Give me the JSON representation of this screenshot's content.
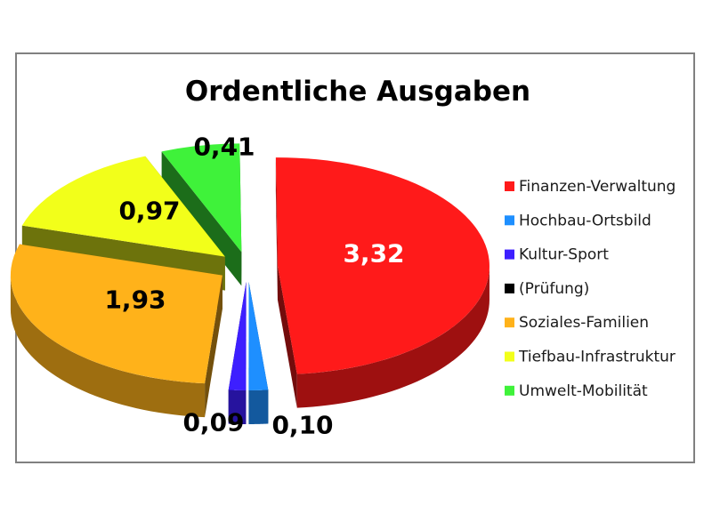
{
  "chart_data": {
    "type": "pie",
    "style": "3d-exploded",
    "title": "Ordentliche Ausgaben",
    "legend_position": "right",
    "slices": [
      {
        "name": "Finanzen-Verwaltung",
        "value": 3.32,
        "label": "3,32",
        "color": "#ff1a1a",
        "label_color": "#ffffff"
      },
      {
        "name": "Hochbau-Ortsbild",
        "value": 0.1,
        "label": "0,10",
        "color": "#1e8fff",
        "label_color": "#000000"
      },
      {
        "name": "Kultur-Sport",
        "value": 0.09,
        "label": "0,09",
        "color": "#3d1fff",
        "label_color": "#000000"
      },
      {
        "name": "(Prüfung)",
        "value": 0.0,
        "label": "",
        "color": "#000000",
        "label_color": "#000000"
      },
      {
        "name": "Soziales-Familien",
        "value": 1.93,
        "label": "1,93",
        "color": "#ffb21a",
        "label_color": "#000000"
      },
      {
        "name": "Tiefbau-Infrastruktur",
        "value": 0.97,
        "label": "0,97",
        "color": "#f2ff1a",
        "label_color": "#000000"
      },
      {
        "name": "Umwelt-Mobilität",
        "value": 0.41,
        "label": "0,41",
        "color": "#3ff23a",
        "label_color": "#000000"
      }
    ]
  }
}
